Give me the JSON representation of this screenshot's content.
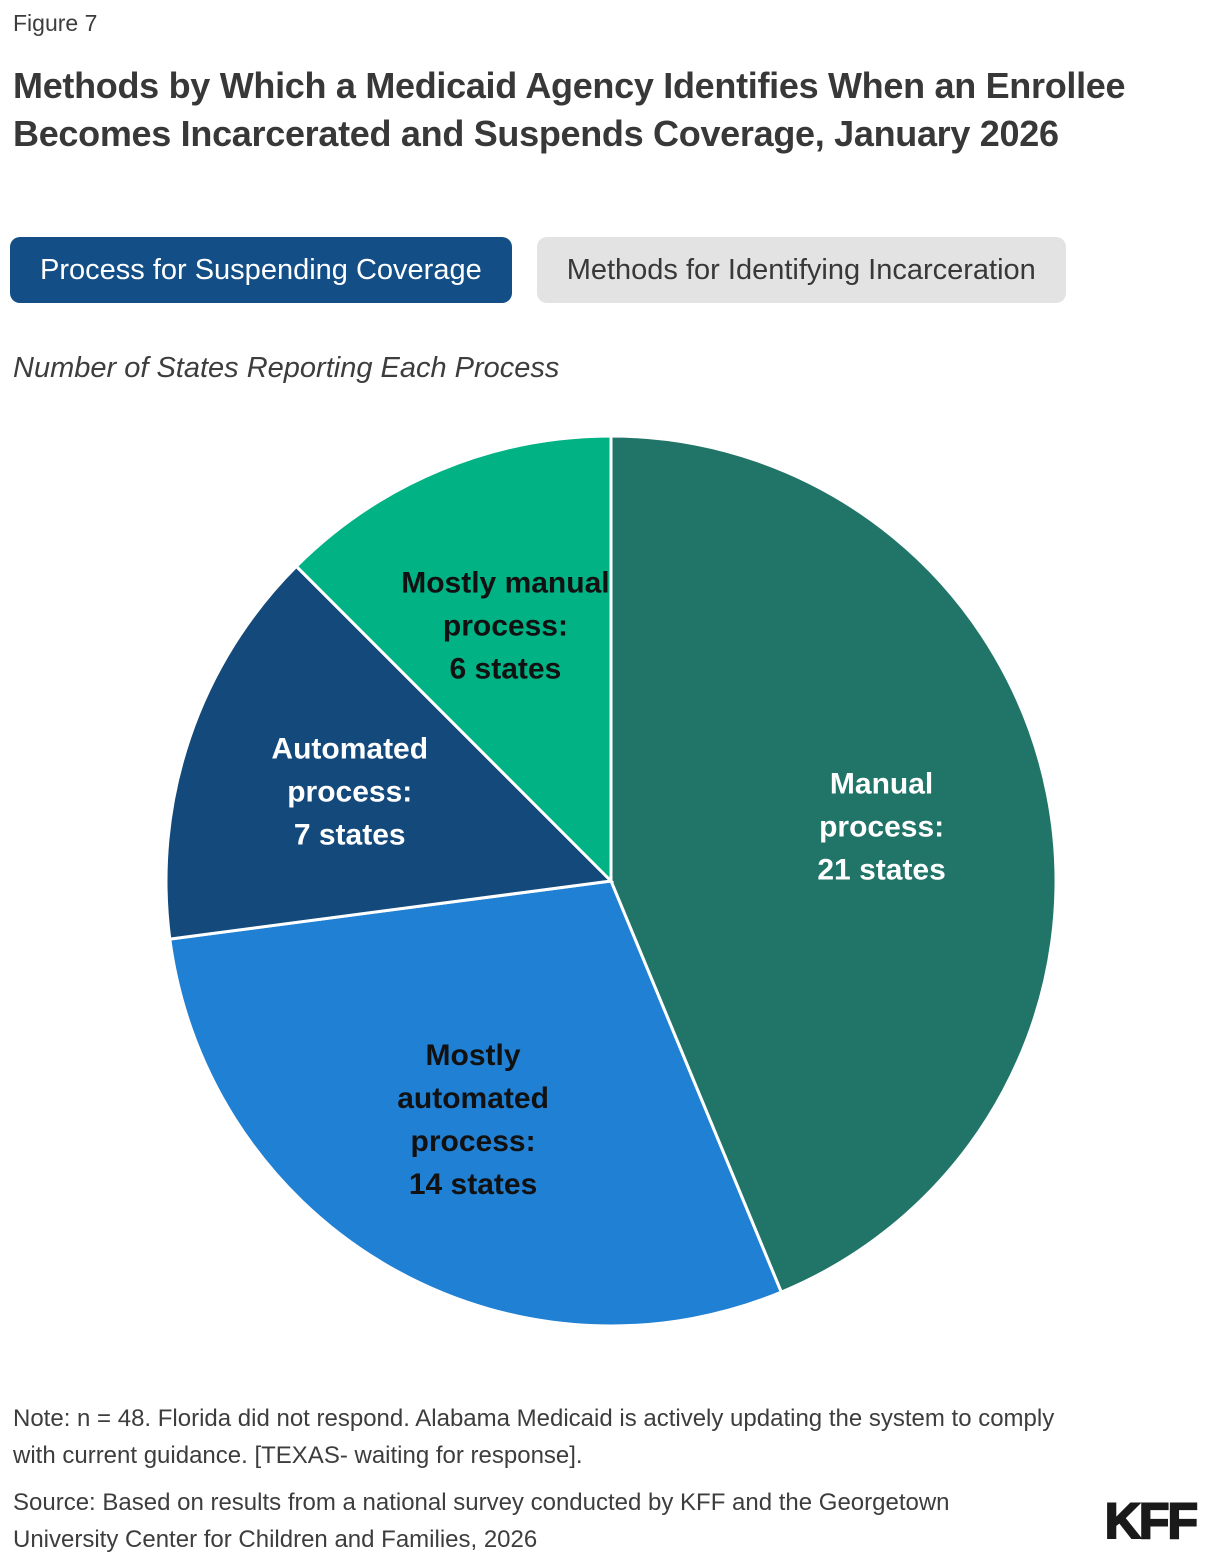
{
  "figure_label": "Figure 7",
  "title": "Methods by Which a Medicaid Agency Identifies When an Enrollee Becomes Incarcerated and Suspends Coverage, January 2026",
  "tabs": [
    {
      "label": "Process for Suspending Coverage",
      "active": true
    },
    {
      "label": "Methods for Identifying Incarceration",
      "active": false
    }
  ],
  "subtitle": "Number of States Reporting Each Process",
  "chart_data": {
    "type": "pie",
    "title": "Number of States Reporting Each Process",
    "total": 48,
    "unit": "states",
    "start_angle_deg": 0,
    "direction": "clockwise",
    "label_radius_fraction": 0.62,
    "slice_border_color": "#ffffff",
    "slices": [
      {
        "id": "manual-process",
        "name": "Manual process",
        "value": 21,
        "label_lines": [
          "Manual",
          "process:",
          "21 states"
        ],
        "color": "#217568",
        "label_color": "#ffffff"
      },
      {
        "id": "mostly-automated-process",
        "name": "Mostly automated process",
        "value": 14,
        "label_lines": [
          "Mostly",
          "automated",
          "process:",
          "14 states"
        ],
        "color": "#2080D3",
        "label_color": "#111111"
      },
      {
        "id": "automated-process",
        "name": "Automated process",
        "value": 7,
        "label_lines": [
          "Automated",
          "process:",
          "7 states"
        ],
        "color": "#14497B",
        "label_color": "#ffffff"
      },
      {
        "id": "mostly-manual-process",
        "name": "Mostly manual process",
        "value": 6,
        "label_lines": [
          "Mostly manual",
          "process:",
          "6 states"
        ],
        "color": "#00B284",
        "label_color": "#111111"
      }
    ]
  },
  "note": "Note: n = 48. Florida did not respond. Alabama Medicaid is actively updating the system to comply with current guidance. [TEXAS- waiting for response].",
  "source": "Source: Based on results from a national survey conducted by KFF and the Georgetown University Center for Children and Families, 2026",
  "logo": "KFF",
  "colors": {
    "active_tab": "#134E86",
    "inactive_tab": "#e3e3e3",
    "text": "#383838"
  }
}
